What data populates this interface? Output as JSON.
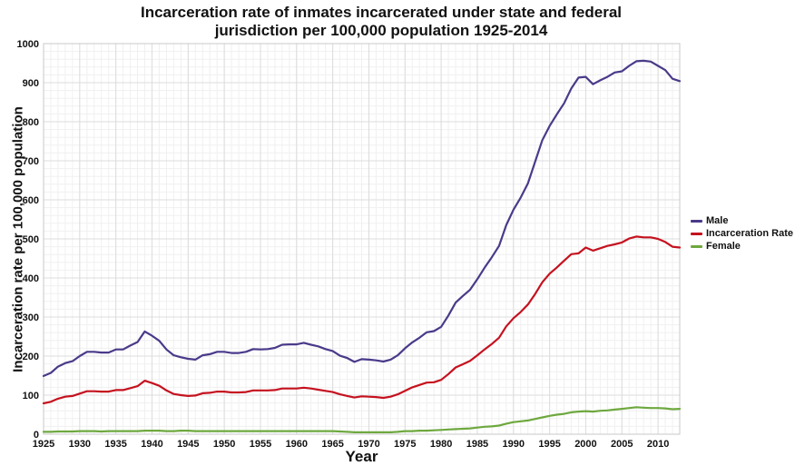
{
  "title": {
    "line1": "Incarceration rate of inmates incarcerated under state and federal",
    "line2": "jurisdiction per 100,000 population 1925-2014"
  },
  "axes": {
    "y_label": "Incarceration rate per 100,000 population",
    "x_label": "Year",
    "y_ticks": [
      0,
      100,
      200,
      300,
      400,
      500,
      600,
      700,
      800,
      900,
      1000
    ],
    "x_ticks": [
      1925,
      1930,
      1935,
      1940,
      1945,
      1950,
      1955,
      1960,
      1965,
      1970,
      1975,
      1980,
      1985,
      1990,
      1995,
      2000,
      2005,
      2010
    ]
  },
  "legend": [
    {
      "label": "Male",
      "color": "#4A3A8A"
    },
    {
      "label": "Incarceration Rate",
      "color": "#C5121F"
    },
    {
      "label": "Female",
      "color": "#6EA83F"
    }
  ],
  "colors": {
    "male": "#4A3A8A",
    "incarceration_rate": "#C5121F",
    "female": "#6EA83F",
    "grid_minor": "#f0f0f0",
    "grid_major": "#dcdcdc",
    "frame": "#c8c8c8"
  },
  "chart_data": {
    "type": "line",
    "title": "Incarceration rate of inmates incarcerated under state and federal jurisdiction per 100,000 population 1925-2014",
    "xlabel": "Year",
    "ylabel": "Incarceration rate per 100,000 population",
    "xlim": [
      1925,
      2013
    ],
    "ylim": [
      0,
      1000
    ],
    "grid": true,
    "legend_position": "right",
    "x": [
      1925,
      1926,
      1927,
      1928,
      1929,
      1930,
      1931,
      1932,
      1933,
      1934,
      1935,
      1936,
      1937,
      1938,
      1939,
      1940,
      1941,
      1942,
      1943,
      1944,
      1945,
      1946,
      1947,
      1948,
      1949,
      1950,
      1951,
      1952,
      1953,
      1954,
      1955,
      1956,
      1957,
      1958,
      1959,
      1960,
      1961,
      1962,
      1963,
      1964,
      1965,
      1966,
      1967,
      1968,
      1969,
      1970,
      1971,
      1972,
      1973,
      1974,
      1975,
      1976,
      1977,
      1978,
      1979,
      1980,
      1981,
      1982,
      1983,
      1984,
      1985,
      1986,
      1987,
      1988,
      1989,
      1990,
      1991,
      1992,
      1993,
      1994,
      1995,
      1996,
      1997,
      1998,
      1999,
      2000,
      2001,
      2002,
      2003,
      2004,
      2005,
      2006,
      2007,
      2008,
      2009,
      2010,
      2011,
      2012,
      2013
    ],
    "series": [
      {
        "name": "Male",
        "color": "#4A3A8A",
        "values": [
          149,
          157,
          173,
          182,
          187,
          200,
          211,
          211,
          209,
          209,
          217,
          217,
          227,
          236,
          263,
          252,
          239,
          217,
          202,
          197,
          193,
          191,
          202,
          205,
          211,
          211,
          208,
          208,
          211,
          218,
          217,
          218,
          221,
          229,
          230,
          230,
          234,
          229,
          225,
          218,
          213,
          201,
          195,
          185,
          192,
          191,
          189,
          186,
          191,
          202,
          220,
          235,
          247,
          261,
          264,
          275,
          304,
          337,
          354,
          370,
          397,
          426,
          453,
          482,
          535,
          575,
          606,
          642,
          698,
          753,
          789,
          819,
          847,
          885,
          913,
          915,
          896,
          906,
          915,
          926,
          929,
          943,
          955,
          956,
          954,
          943,
          932,
          910,
          904
        ]
      },
      {
        "name": "Incarceration Rate",
        "color": "#C5121F",
        "values": [
          79,
          83,
          91,
          96,
          98,
          104,
          110,
          110,
          109,
          109,
          113,
          113,
          118,
          123,
          137,
          131,
          124,
          112,
          103,
          100,
          98,
          99,
          105,
          106,
          109,
          109,
          107,
          107,
          108,
          112,
          112,
          112,
          113,
          117,
          117,
          117,
          119,
          117,
          114,
          111,
          108,
          102,
          98,
          94,
          97,
          96,
          95,
          93,
          96,
          102,
          111,
          120,
          126,
          132,
          133,
          139,
          154,
          171,
          179,
          188,
          202,
          217,
          231,
          247,
          276,
          297,
          313,
          332,
          359,
          389,
          411,
          427,
          444,
          461,
          463,
          478,
          470,
          476,
          482,
          486,
          491,
          501,
          506,
          504,
          504,
          500,
          492,
          480,
          478
        ]
      },
      {
        "name": "Female",
        "color": "#6EA83F",
        "values": [
          6,
          6,
          7,
          7,
          7,
          8,
          8,
          8,
          7,
          8,
          8,
          8,
          8,
          8,
          9,
          9,
          9,
          8,
          8,
          9,
          9,
          8,
          8,
          8,
          8,
          8,
          8,
          8,
          8,
          8,
          8,
          8,
          8,
          8,
          8,
          8,
          8,
          8,
          8,
          8,
          8,
          7,
          6,
          5,
          5,
          5,
          5,
          5,
          5,
          6,
          8,
          8,
          9,
          9,
          10,
          11,
          12,
          13,
          14,
          15,
          17,
          19,
          20,
          22,
          27,
          31,
          33,
          35,
          39,
          43,
          47,
          50,
          52,
          56,
          58,
          59,
          58,
          60,
          61,
          63,
          65,
          67,
          69,
          68,
          67,
          67,
          66,
          64,
          65
        ]
      }
    ]
  }
}
